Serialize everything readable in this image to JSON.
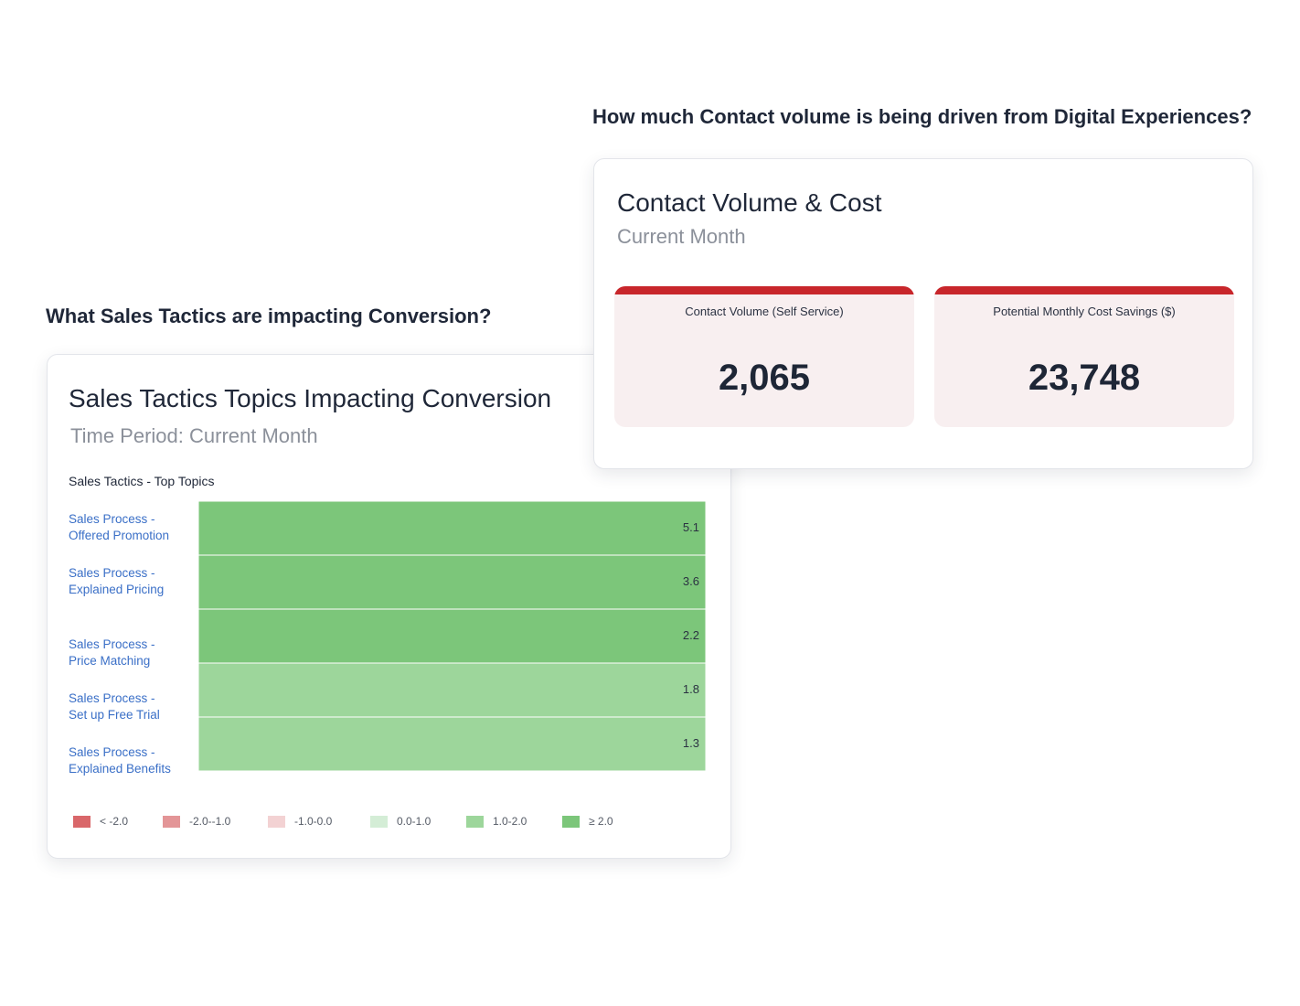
{
  "sales_section": {
    "question": "What Sales Tactics are impacting Conversion?",
    "card": {
      "title": "Sales Tactics Topics Impacting Conversion",
      "subtitle": "Time Period: Current Month"
    }
  },
  "contact_section": {
    "question": "How much Contact volume is being driven from Digital Experiences?",
    "card": {
      "title": "Contact Volume & Cost",
      "subtitle": "Current Month",
      "kpis": [
        {
          "label": "Contact Volume (Self Service)",
          "value": "2,065"
        },
        {
          "label": "Potential Monthly Cost Savings ($)",
          "value": "23,748"
        }
      ],
      "kpi_accent_color": "#c8262b",
      "kpi_background_color": "#f8eff0"
    }
  },
  "chart_data": {
    "type": "heatmap",
    "title": "Sales Tactics - Top Topics",
    "categories": [
      [
        "Sales Process -",
        "Offered Promotion"
      ],
      [
        "Sales Process -",
        "Explained Pricing"
      ],
      [
        "Sales Process -",
        "Price Matching"
      ],
      [
        "Sales Process -",
        "Set up Free Trial"
      ],
      [
        "Sales Process -",
        "Explained Benefits"
      ]
    ],
    "values": [
      5.1,
      3.6,
      2.2,
      1.8,
      1.3
    ],
    "legend": [
      {
        "label": "< -2.0",
        "color": "#d9676a",
        "min": null,
        "max": -2.0
      },
      {
        "label": "-2.0--1.0",
        "color": "#e39597",
        "min": -2.0,
        "max": -1.0
      },
      {
        "label": "-1.0-0.0",
        "color": "#f3d2d3",
        "min": -1.0,
        "max": 0.0
      },
      {
        "label": "0.0-1.0",
        "color": "#d4edd6",
        "min": 0.0,
        "max": 1.0
      },
      {
        "label": "1.0-2.0",
        "color": "#9dd69b",
        "min": 1.0,
        "max": 2.0
      },
      {
        "label": "≥ 2.0",
        "color": "#7cc67a",
        "min": 2.0,
        "max": null
      }
    ],
    "label_color": "#3a6fc7"
  }
}
